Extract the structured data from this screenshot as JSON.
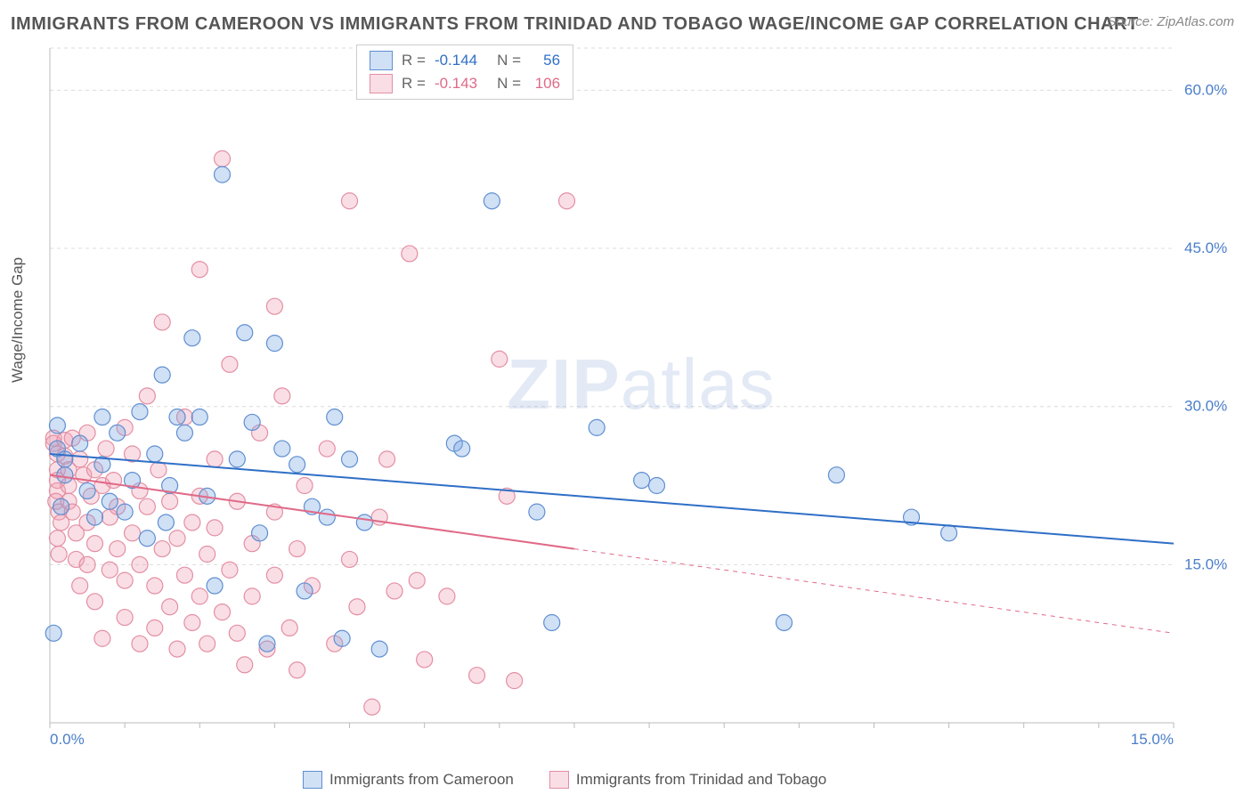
{
  "title": "IMMIGRANTS FROM CAMEROON VS IMMIGRANTS FROM TRINIDAD AND TOBAGO WAGE/INCOME GAP CORRELATION CHART",
  "source": "Source: ZipAtlas.com",
  "ylabel": "Wage/Income Gap",
  "watermark_a": "ZIP",
  "watermark_b": "atlas",
  "chart": {
    "type": "scatter",
    "background_color": "#ffffff",
    "grid_color": "#dcdcdc",
    "xlim": [
      0,
      15
    ],
    "ylim": [
      0,
      64
    ],
    "x_ticks": [
      0,
      15
    ],
    "x_tick_labels": [
      "0.0%",
      "15.0%"
    ],
    "y_ticks": [
      15,
      30,
      45,
      60
    ],
    "y_tick_labels": [
      "15.0%",
      "30.0%",
      "45.0%",
      "60.0%"
    ],
    "marker_radius": 9,
    "marker_stroke_width": 1.2,
    "line_width": 2,
    "series": [
      {
        "name": "Immigrants from Cameroon",
        "fill": "rgba(120,165,225,0.35)",
        "stroke": "#5f8fd1",
        "line_color": "#2f6fc7",
        "r_value": "-0.144",
        "n_value": "56",
        "trend": {
          "x1": 0,
          "y1": 25.5,
          "x2": 15,
          "y2": 17.0,
          "x_solid_end": 15
        },
        "points": [
          [
            0.1,
            28.2
          ],
          [
            0.1,
            26.0
          ],
          [
            0.2,
            23.5
          ],
          [
            0.2,
            25.0
          ],
          [
            0.15,
            20.5
          ],
          [
            0.4,
            26.5
          ],
          [
            0.5,
            22.0
          ],
          [
            0.6,
            19.5
          ],
          [
            0.7,
            24.5
          ],
          [
            0.7,
            29.0
          ],
          [
            0.8,
            21.0
          ],
          [
            0.9,
            27.5
          ],
          [
            1.0,
            20.0
          ],
          [
            1.1,
            23.0
          ],
          [
            1.2,
            29.5
          ],
          [
            1.3,
            17.5
          ],
          [
            1.4,
            25.5
          ],
          [
            1.5,
            33.0
          ],
          [
            1.6,
            22.5
          ],
          [
            1.55,
            19.0
          ],
          [
            1.7,
            29.0
          ],
          [
            1.8,
            27.5
          ],
          [
            1.9,
            36.5
          ],
          [
            2.0,
            29.0
          ],
          [
            2.1,
            21.5
          ],
          [
            2.2,
            13.0
          ],
          [
            2.3,
            52.0
          ],
          [
            2.5,
            25.0
          ],
          [
            2.6,
            37.0
          ],
          [
            2.7,
            28.5
          ],
          [
            2.8,
            18.0
          ],
          [
            2.9,
            7.5
          ],
          [
            3.0,
            36.0
          ],
          [
            3.1,
            26.0
          ],
          [
            3.3,
            24.5
          ],
          [
            3.4,
            12.5
          ],
          [
            3.5,
            20.5
          ],
          [
            3.7,
            19.5
          ],
          [
            3.8,
            29.0
          ],
          [
            3.9,
            8.0
          ],
          [
            4.0,
            25.0
          ],
          [
            4.2,
            19.0
          ],
          [
            4.4,
            7.0
          ],
          [
            5.4,
            26.5
          ],
          [
            5.5,
            26.0
          ],
          [
            5.9,
            49.5
          ],
          [
            6.5,
            20.0
          ],
          [
            6.7,
            9.5
          ],
          [
            7.3,
            28.0
          ],
          [
            7.9,
            23.0
          ],
          [
            8.1,
            22.5
          ],
          [
            9.8,
            9.5
          ],
          [
            10.5,
            23.5
          ],
          [
            11.5,
            19.5
          ],
          [
            12.0,
            18.0
          ],
          [
            0.05,
            8.5
          ]
        ]
      },
      {
        "name": "Immigrants from Trinidad and Tobago",
        "fill": "rgba(240,160,180,0.35)",
        "stroke": "#e38fa3",
        "line_color": "#e06a88",
        "r_value": "-0.143",
        "n_value": "106",
        "trend": {
          "x1": 0,
          "y1": 23.5,
          "x2": 15,
          "y2": 8.5,
          "x_solid_end": 7.0
        },
        "points": [
          [
            0.05,
            27.0
          ],
          [
            0.05,
            26.5
          ],
          [
            0.1,
            25.5
          ],
          [
            0.1,
            24.0
          ],
          [
            0.1,
            23.0
          ],
          [
            0.1,
            22.0
          ],
          [
            0.08,
            21.0
          ],
          [
            0.12,
            20.0
          ],
          [
            0.15,
            19.0
          ],
          [
            0.1,
            17.5
          ],
          [
            0.12,
            16.0
          ],
          [
            0.2,
            26.8
          ],
          [
            0.2,
            25.3
          ],
          [
            0.25,
            24.0
          ],
          [
            0.25,
            22.5
          ],
          [
            0.25,
            21.0
          ],
          [
            0.3,
            20.0
          ],
          [
            0.3,
            27.0
          ],
          [
            0.35,
            18.0
          ],
          [
            0.35,
            15.5
          ],
          [
            0.4,
            13.0
          ],
          [
            0.4,
            25.0
          ],
          [
            0.45,
            23.5
          ],
          [
            0.5,
            27.5
          ],
          [
            0.5,
            19.0
          ],
          [
            0.5,
            15.0
          ],
          [
            0.55,
            21.5
          ],
          [
            0.6,
            24.0
          ],
          [
            0.6,
            17.0
          ],
          [
            0.6,
            11.5
          ],
          [
            0.7,
            8.0
          ],
          [
            0.7,
            22.5
          ],
          [
            0.75,
            26.0
          ],
          [
            0.8,
            19.5
          ],
          [
            0.8,
            14.5
          ],
          [
            0.85,
            23.0
          ],
          [
            0.9,
            16.5
          ],
          [
            0.9,
            20.5
          ],
          [
            1.0,
            28.0
          ],
          [
            1.0,
            13.5
          ],
          [
            1.0,
            10.0
          ],
          [
            1.1,
            25.5
          ],
          [
            1.1,
            18.0
          ],
          [
            1.2,
            22.0
          ],
          [
            1.2,
            15.0
          ],
          [
            1.2,
            7.5
          ],
          [
            1.3,
            31.0
          ],
          [
            1.3,
            20.5
          ],
          [
            1.4,
            13.0
          ],
          [
            1.4,
            9.0
          ],
          [
            1.45,
            24.0
          ],
          [
            1.5,
            38.0
          ],
          [
            1.5,
            16.5
          ],
          [
            1.6,
            21.0
          ],
          [
            1.6,
            11.0
          ],
          [
            1.7,
            17.5
          ],
          [
            1.7,
            7.0
          ],
          [
            1.8,
            29.0
          ],
          [
            1.8,
            14.0
          ],
          [
            1.9,
            19.0
          ],
          [
            1.9,
            9.5
          ],
          [
            2.0,
            43.0
          ],
          [
            2.0,
            21.5
          ],
          [
            2.0,
            12.0
          ],
          [
            2.1,
            16.0
          ],
          [
            2.1,
            7.5
          ],
          [
            2.2,
            25.0
          ],
          [
            2.2,
            18.5
          ],
          [
            2.3,
            53.5
          ],
          [
            2.3,
            10.5
          ],
          [
            2.4,
            34.0
          ],
          [
            2.4,
            14.5
          ],
          [
            2.5,
            8.5
          ],
          [
            2.5,
            21.0
          ],
          [
            2.6,
            5.5
          ],
          [
            2.7,
            17.0
          ],
          [
            2.7,
            12.0
          ],
          [
            2.8,
            27.5
          ],
          [
            2.9,
            7.0
          ],
          [
            3.0,
            39.5
          ],
          [
            3.0,
            20.0
          ],
          [
            3.0,
            14.0
          ],
          [
            3.1,
            31.0
          ],
          [
            3.2,
            9.0
          ],
          [
            3.3,
            16.5
          ],
          [
            3.3,
            5.0
          ],
          [
            3.4,
            22.5
          ],
          [
            3.5,
            13.0
          ],
          [
            3.7,
            26.0
          ],
          [
            3.8,
            7.5
          ],
          [
            4.0,
            49.5
          ],
          [
            4.0,
            15.5
          ],
          [
            4.1,
            11.0
          ],
          [
            4.3,
            1.5
          ],
          [
            4.4,
            19.5
          ],
          [
            4.5,
            25.0
          ],
          [
            4.6,
            12.5
          ],
          [
            4.8,
            44.5
          ],
          [
            4.9,
            13.5
          ],
          [
            5.0,
            6.0
          ],
          [
            5.3,
            12.0
          ],
          [
            5.7,
            4.5
          ],
          [
            6.0,
            34.5
          ],
          [
            6.1,
            21.5
          ],
          [
            6.2,
            4.0
          ],
          [
            6.9,
            49.5
          ]
        ]
      }
    ]
  },
  "legend_bottom_label_a": "Immigrants from Cameroon",
  "legend_bottom_label_b": "Immigrants from Trinidad and Tobago",
  "stat_labels": {
    "r": "R =",
    "n": "N ="
  }
}
